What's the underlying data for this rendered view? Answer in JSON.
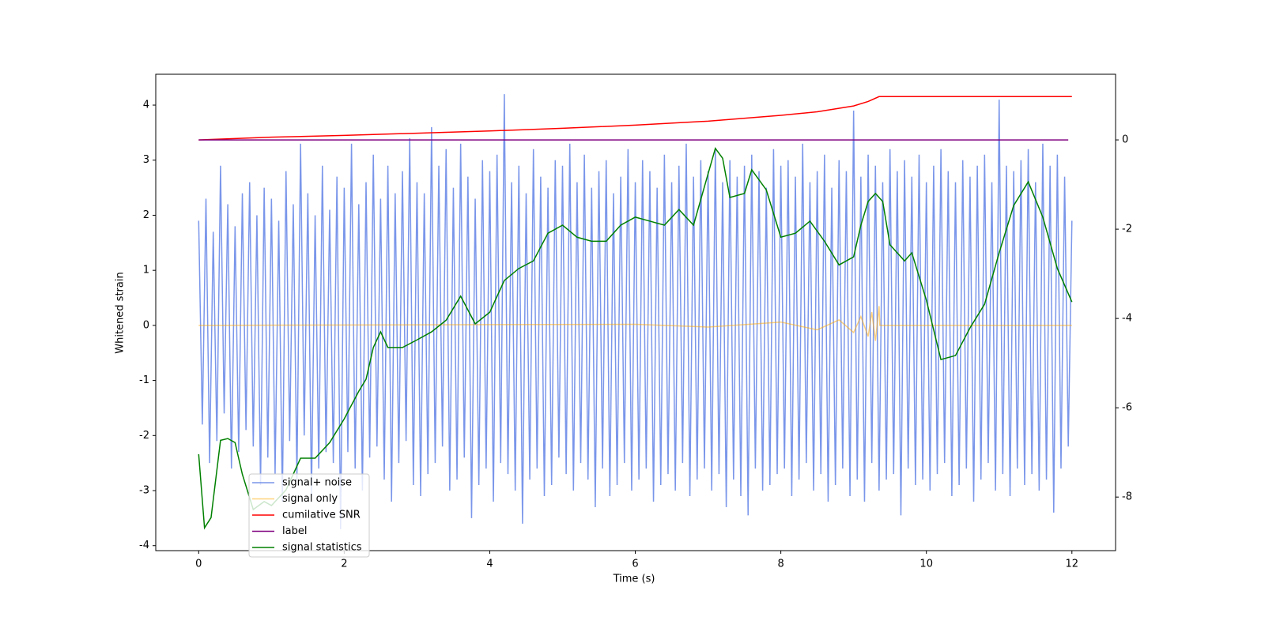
{
  "chart_data": {
    "type": "line",
    "xlabel": "Time (s)",
    "ylabel": "Whitened strain",
    "xlim": [
      -0.59,
      12.6
    ],
    "xticks": [
      0,
      2,
      4,
      6,
      8,
      10,
      12
    ],
    "ylim": [
      -4.09,
      4.56
    ],
    "yticks": [
      -4,
      -3,
      -2,
      -1,
      0,
      1,
      2,
      3,
      4
    ],
    "y2lim": [
      -9.2,
      1.47
    ],
    "y2ticks": [
      -8,
      -6,
      -4,
      -2,
      0
    ],
    "legend": "lower left",
    "series": [
      {
        "name": "signal+ noise",
        "color": "#4169e1",
        "alpha": 0.7,
        "x": [
          0,
          0.05,
          0.1,
          0.15,
          0.2,
          0.25,
          0.3,
          0.35,
          0.4,
          0.45,
          0.5,
          0.55,
          0.6,
          0.65,
          0.7,
          0.75,
          0.8,
          0.85,
          0.9,
          0.95,
          1,
          1.05,
          1.1,
          1.15,
          1.2,
          1.25,
          1.3,
          1.35,
          1.4,
          1.45,
          1.5,
          1.55,
          1.6,
          1.65,
          1.7,
          1.75,
          1.8,
          1.85,
          1.9,
          1.95,
          2,
          2.05,
          2.1,
          2.15,
          2.2,
          2.25,
          2.3,
          2.35,
          2.4,
          2.45,
          2.5,
          2.55,
          2.6,
          2.65,
          2.7,
          2.75,
          2.8,
          2.85,
          2.9,
          2.95,
          3,
          3.05,
          3.1,
          3.15,
          3.2,
          3.25,
          3.3,
          3.35,
          3.4,
          3.45,
          3.5,
          3.55,
          3.6,
          3.65,
          3.7,
          3.75,
          3.8,
          3.85,
          3.9,
          3.95,
          4,
          4.05,
          4.1,
          4.15,
          4.2,
          4.25,
          4.3,
          4.35,
          4.4,
          4.45,
          4.5,
          4.55,
          4.6,
          4.65,
          4.7,
          4.75,
          4.8,
          4.85,
          4.9,
          4.95,
          5,
          5.05,
          5.1,
          5.15,
          5.2,
          5.25,
          5.3,
          5.35,
          5.4,
          5.45,
          5.5,
          5.55,
          5.6,
          5.65,
          5.7,
          5.75,
          5.8,
          5.85,
          5.9,
          5.95,
          6,
          6.05,
          6.1,
          6.15,
          6.2,
          6.25,
          6.3,
          6.35,
          6.4,
          6.45,
          6.5,
          6.55,
          6.6,
          6.65,
          6.7,
          6.75,
          6.8,
          6.85,
          6.9,
          6.95,
          7,
          7.05,
          7.1,
          7.15,
          7.2,
          7.25,
          7.3,
          7.35,
          7.4,
          7.45,
          7.5,
          7.55,
          7.6,
          7.65,
          7.7,
          7.75,
          7.8,
          7.85,
          7.9,
          7.95,
          8,
          8.05,
          8.1,
          8.15,
          8.2,
          8.25,
          8.3,
          8.35,
          8.4,
          8.45,
          8.5,
          8.55,
          8.6,
          8.65,
          8.7,
          8.75,
          8.8,
          8.85,
          8.9,
          8.95,
          9,
          9.05,
          9.1,
          9.15,
          9.2,
          9.25,
          9.3,
          9.35,
          9.4,
          9.45,
          9.5,
          9.55,
          9.6,
          9.65,
          9.7,
          9.75,
          9.8,
          9.85,
          9.9,
          9.95,
          10,
          10.05,
          10.1,
          10.15,
          10.2,
          10.25,
          10.3,
          10.35,
          10.4,
          10.45,
          10.5,
          10.55,
          10.6,
          10.65,
          10.7,
          10.75,
          10.8,
          10.85,
          10.9,
          10.95,
          11,
          11.05,
          11.1,
          11.15,
          11.2,
          11.25,
          11.3,
          11.35,
          11.4,
          11.45,
          11.5,
          11.55,
          11.6,
          11.65,
          11.7,
          11.75,
          11.8,
          11.85,
          11.9,
          11.95,
          12
        ],
        "values": [
          1.9,
          -1.8,
          2.3,
          -2.5,
          1.7,
          -2.1,
          2.9,
          -1.6,
          2.2,
          -2.6,
          1.8,
          -2.3,
          2.4,
          -1.9,
          2.6,
          -2.2,
          2.0,
          -2.9,
          2.5,
          -2.4,
          2.3,
          -2.7,
          1.9,
          -3.2,
          2.8,
          -2.1,
          2.2,
          -2.8,
          3.3,
          -2.0,
          2.4,
          -3.1,
          2.0,
          -2.6,
          2.9,
          -2.3,
          2.1,
          -2.5,
          2.7,
          -3.7,
          2.5,
          -2.3,
          3.3,
          -2.6,
          2.2,
          -3.0,
          2.6,
          -2.4,
          3.1,
          -2.2,
          2.3,
          -2.8,
          2.9,
          -3.2,
          2.4,
          -2.5,
          2.8,
          -2.1,
          3.4,
          -2.9,
          2.6,
          -3.1,
          2.4,
          -2.7,
          3.6,
          -2.5,
          2.9,
          -2.2,
          3.2,
          -3.0,
          2.5,
          -2.8,
          3.3,
          -2.4,
          2.7,
          -3.5,
          2.3,
          -2.9,
          3.0,
          -2.6,
          2.8,
          -3.2,
          3.1,
          -2.5,
          4.2,
          -2.7,
          2.6,
          -3.0,
          2.9,
          -3.6,
          2.4,
          -2.8,
          3.2,
          -2.6,
          2.7,
          -3.1,
          2.5,
          -2.9,
          3.0,
          -2.4,
          2.9,
          -2.7,
          3.3,
          -3.0,
          2.6,
          -2.5,
          3.1,
          -2.8,
          2.5,
          -3.3,
          2.8,
          -2.6,
          3.0,
          -3.1,
          2.4,
          -2.9,
          2.7,
          -2.5,
          3.2,
          -3.0,
          2.6,
          -2.8,
          3.0,
          -2.6,
          2.8,
          -3.2,
          2.5,
          -2.9,
          3.1,
          -2.7,
          2.6,
          -3.0,
          2.9,
          -2.5,
          3.3,
          -3.1,
          2.7,
          -2.8,
          3.0,
          -2.6,
          2.8,
          -3.0,
          3.2,
          -2.7,
          2.6,
          -3.3,
          3.0,
          -2.8,
          2.7,
          -3.1,
          2.9,
          -3.45,
          3.1,
          -2.6,
          2.8,
          -3.0,
          2.5,
          -2.9,
          3.2,
          -2.7,
          2.9,
          -2.6,
          3.0,
          -3.1,
          2.7,
          -2.8,
          3.3,
          -2.5,
          2.6,
          -3.0,
          2.8,
          -2.7,
          3.1,
          -3.2,
          2.5,
          -2.9,
          3.0,
          -2.6,
          2.8,
          -3.1,
          3.9,
          -2.8,
          2.7,
          -3.2,
          3.1,
          -2.5,
          2.9,
          -3.0,
          2.6,
          -2.8,
          3.2,
          -2.7,
          2.8,
          -3.45,
          3.0,
          -2.6,
          2.7,
          -2.9,
          3.1,
          -2.8,
          2.6,
          -3.0,
          2.9,
          -2.7,
          3.2,
          -2.5,
          2.8,
          -3.1,
          2.6,
          -2.9,
          3.0,
          -2.6,
          2.7,
          -3.2,
          2.9,
          -2.8,
          3.1,
          -2.5,
          2.6,
          -3.0,
          4.1,
          -2.7,
          2.9,
          -3.1,
          2.8,
          -2.6,
          3.0,
          -2.9,
          3.2,
          -2.7,
          2.6,
          -3.0,
          3.3,
          -2.8,
          2.9,
          -3.4,
          3.1,
          -2.6,
          2.7,
          -2.2,
          1.9
        ]
      },
      {
        "name": "signal only",
        "color": "#ffa500",
        "alpha": 0.5,
        "x": [
          0,
          6,
          7,
          8,
          8.5,
          8.8,
          9.0,
          9.1,
          9.2,
          9.25,
          9.3,
          9.35,
          9.36,
          12
        ],
        "values": [
          0,
          0.02,
          -0.03,
          0.06,
          -0.08,
          0.1,
          -0.13,
          0.16,
          -0.2,
          0.24,
          -0.28,
          0.35,
          0,
          0
        ]
      },
      {
        "name": "cumilative SNR",
        "color": "#ff0000",
        "alpha": 1,
        "axis": "y2",
        "x": [
          0,
          1,
          2,
          3,
          4,
          5,
          6,
          7,
          8,
          8.5,
          9,
          9.2,
          9.35,
          12
        ],
        "values": [
          0,
          0.06,
          0.1,
          0.15,
          0.2,
          0.26,
          0.33,
          0.42,
          0.55,
          0.63,
          0.76,
          0.86,
          0.97,
          0.97
        ]
      },
      {
        "name": "label",
        "color": "#800080",
        "alpha": 1,
        "axis": "y2",
        "x": [
          0,
          11.95
        ],
        "values": [
          0,
          0
        ]
      },
      {
        "name": "signal statistics",
        "color": "#008000",
        "alpha": 1,
        "axis": "y2",
        "x": [
          0,
          0.08,
          0.17,
          0.3,
          0.4,
          0.5,
          0.6,
          0.75,
          0.9,
          1.0,
          1.2,
          1.4,
          1.6,
          1.8,
          2.0,
          2.2,
          2.3,
          2.4,
          2.5,
          2.6,
          2.8,
          3.0,
          3.2,
          3.4,
          3.6,
          3.8,
          4.0,
          4.2,
          4.4,
          4.6,
          4.8,
          5.0,
          5.2,
          5.4,
          5.6,
          5.8,
          6.0,
          6.2,
          6.4,
          6.6,
          6.8,
          7.0,
          7.1,
          7.2,
          7.3,
          7.5,
          7.6,
          7.8,
          8.0,
          8.2,
          8.4,
          8.6,
          8.8,
          9.0,
          9.1,
          9.2,
          9.3,
          9.4,
          9.5,
          9.7,
          9.8,
          10.0,
          10.2,
          10.4,
          10.6,
          10.8,
          11.0,
          11.2,
          11.4,
          11.6,
          11.8,
          12.0
        ],
        "values": [
          -7.04,
          -8.69,
          -8.46,
          -6.73,
          -6.69,
          -6.78,
          -7.49,
          -8.28,
          -8.1,
          -8.19,
          -7.84,
          -7.13,
          -7.13,
          -6.78,
          -6.25,
          -5.63,
          -5.36,
          -4.65,
          -4.3,
          -4.65,
          -4.65,
          -4.48,
          -4.3,
          -4.04,
          -3.5,
          -4.12,
          -3.86,
          -3.15,
          -2.88,
          -2.71,
          -2.09,
          -1.91,
          -2.18,
          -2.27,
          -2.27,
          -1.91,
          -1.73,
          -1.82,
          -1.91,
          -1.56,
          -1.91,
          -0.76,
          -0.19,
          -0.41,
          -1.29,
          -1.2,
          -0.67,
          -1.12,
          -2.18,
          -2.09,
          -1.82,
          -2.27,
          -2.8,
          -2.62,
          -1.91,
          -1.38,
          -1.2,
          -1.38,
          -2.35,
          -2.71,
          -2.53,
          -3.59,
          -4.92,
          -4.83,
          -4.21,
          -3.68,
          -2.53,
          -1.47,
          -0.94,
          -1.73,
          -2.88,
          -3.63
        ]
      }
    ]
  }
}
